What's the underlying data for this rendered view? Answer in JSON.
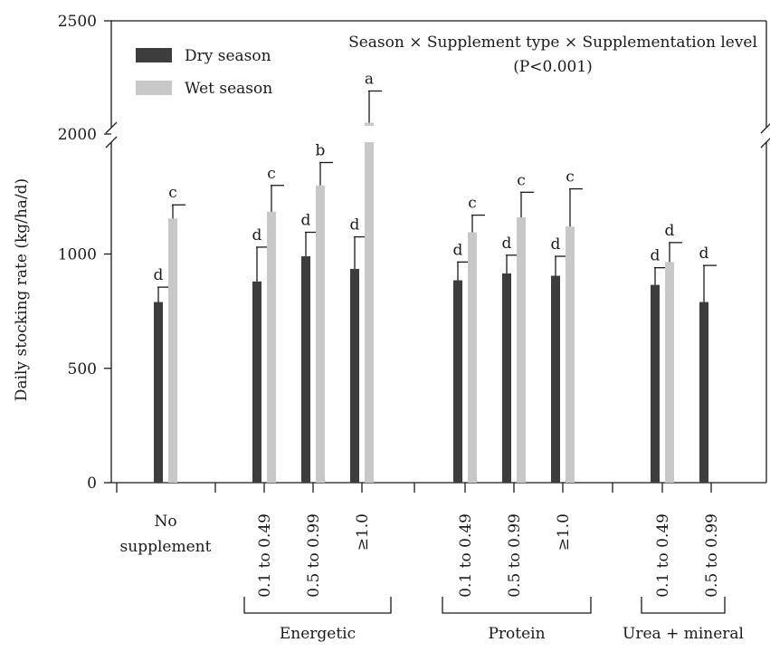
{
  "chart_data": {
    "type": "bar",
    "ylabel": "Daily stocking rate (kg/ha/d)",
    "y_ticks": [
      "0",
      "500",
      "1000",
      "2000",
      "2500"
    ],
    "y_scale": "broken axis between 1500 and 2000",
    "annotation": {
      "line1": "Season × Supplement type × Supplementation level",
      "line2": "(P<0.001)"
    },
    "legend": {
      "placement": "top-left"
    },
    "colors": {
      "dry": "#3d3d3d",
      "wet": "#c8c8c8"
    },
    "series": [
      {
        "name": "Dry season",
        "key": "dry"
      },
      {
        "name": "Wet season",
        "key": "wet"
      }
    ],
    "categories": [
      {
        "label": "No supplement",
        "label_lines": [
          "No",
          "supplement"
        ],
        "group": "none",
        "dry": {
          "value": 790,
          "error": 65,
          "letter": "d"
        },
        "wet": {
          "value": 1155,
          "error": 60,
          "letter": "c"
        }
      },
      {
        "label": "0.1 to 0.49",
        "group": "Energetic",
        "dry": {
          "value": 880,
          "error": 150,
          "letter": "d"
        },
        "wet": {
          "value": 1185,
          "error": 115,
          "letter": "c"
        }
      },
      {
        "label": "0.5 to 0.99",
        "group": "Energetic",
        "dry": {
          "value": 990,
          "error": 105,
          "letter": "d"
        },
        "wet": {
          "value": 1300,
          "error": 100,
          "letter": "b"
        }
      },
      {
        "label": "≥1.0",
        "group": "Energetic",
        "dry": {
          "value": 935,
          "error": 140,
          "letter": "d"
        },
        "wet": {
          "value": 2050,
          "error": 140,
          "letter": "a"
        }
      },
      {
        "label": "0.1 to 0.49",
        "group": "Protein",
        "dry": {
          "value": 885,
          "error": 80,
          "letter": "d"
        },
        "wet": {
          "value": 1095,
          "error": 75,
          "letter": "c"
        }
      },
      {
        "label": "0.5 to 0.99",
        "group": "Protein",
        "dry": {
          "value": 915,
          "error": 80,
          "letter": "d"
        },
        "wet": {
          "value": 1160,
          "error": 110,
          "letter": "c"
        }
      },
      {
        "label": "≥1.0",
        "group": "Protein",
        "dry": {
          "value": 905,
          "error": 85,
          "letter": "d"
        },
        "wet": {
          "value": 1120,
          "error": 165,
          "letter": "c"
        }
      },
      {
        "label": "0.1 to 0.49",
        "group": "Urea + mineral",
        "dry": {
          "value": 865,
          "error": 75,
          "letter": "d"
        },
        "wet": {
          "value": 965,
          "error": 85,
          "letter": "d"
        }
      },
      {
        "label": "0.5 to 0.99",
        "group": "Urea + mineral",
        "dry": {
          "value": 790,
          "error": 160,
          "letter": "d"
        },
        "wet": null
      }
    ],
    "groups": [
      "Energetic",
      "Protein",
      "Urea + mineral"
    ]
  }
}
